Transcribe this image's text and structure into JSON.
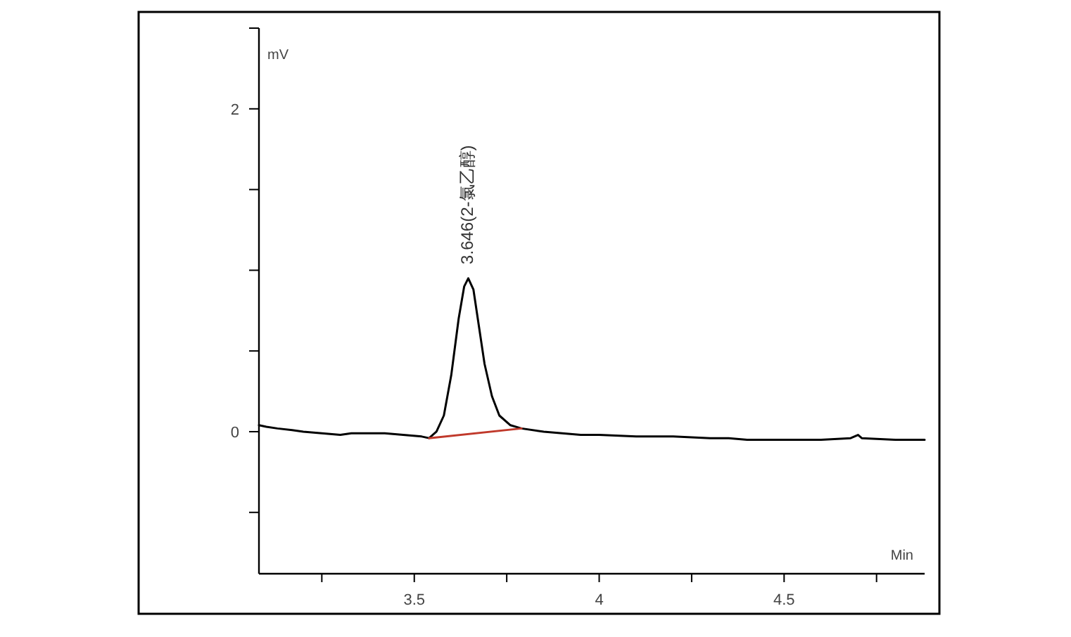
{
  "chart_data": {
    "type": "line",
    "xlabel": "Min",
    "ylabel": "mV",
    "xlim": [
      3.08,
      4.88
    ],
    "ylim": [
      -0.88,
      2.5
    ],
    "xticks": [
      {
        "value": 3.25,
        "label": null
      },
      3.5,
      {
        "value": 3.75,
        "label": null
      },
      4,
      {
        "value": 4.25,
        "label": null
      },
      4.5,
      {
        "value": 4.75,
        "label": null
      }
    ],
    "yticks": [
      {
        "value": -0.5,
        "label": null
      },
      0,
      {
        "value": 0.5,
        "label": null
      },
      {
        "value": 1,
        "label": null
      },
      {
        "value": 1.5,
        "label": null
      },
      2
    ],
    "grid": false,
    "series": [
      {
        "color": "#000000",
        "x": [
          3.08,
          3.1,
          3.13,
          3.17,
          3.2,
          3.25,
          3.3,
          3.33,
          3.37,
          3.42,
          3.47,
          3.52,
          3.54,
          3.56,
          3.58,
          3.6,
          3.62,
          3.635,
          3.646,
          3.66,
          3.675,
          3.69,
          3.71,
          3.73,
          3.76,
          3.79,
          3.85,
          3.9,
          3.95,
          4.0,
          4.1,
          4.2,
          4.3,
          4.35,
          4.4,
          4.5,
          4.6,
          4.68,
          4.7,
          4.71,
          4.8,
          4.88
        ],
        "values": [
          0.04,
          0.03,
          0.02,
          0.01,
          0,
          -0.01,
          -0.02,
          -0.01,
          -0.01,
          -0.01,
          -0.02,
          -0.03,
          -0.04,
          0.0,
          0.1,
          0.35,
          0.7,
          0.9,
          0.95,
          0.88,
          0.65,
          0.42,
          0.22,
          0.1,
          0.04,
          0.02,
          0.0,
          -0.01,
          -0.02,
          -0.02,
          -0.03,
          -0.03,
          -0.04,
          -0.04,
          -0.05,
          -0.05,
          -0.05,
          -0.04,
          -0.02,
          -0.04,
          -0.05,
          -0.05
        ]
      },
      {
        "color": "#c0392b",
        "x": [
          3.54,
          3.79
        ],
        "values": [
          -0.04,
          0.02
        ]
      }
    ],
    "annotations": [
      {
        "text": "3.646(2-氯乙醇)",
        "x": 3.646,
        "y": 0.95
      }
    ]
  }
}
